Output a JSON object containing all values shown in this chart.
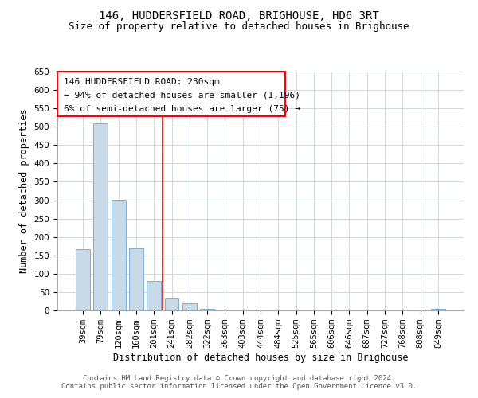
{
  "title": "146, HUDDERSFIELD ROAD, BRIGHOUSE, HD6 3RT",
  "subtitle": "Size of property relative to detached houses in Brighouse",
  "xlabel": "Distribution of detached houses by size in Brighouse",
  "ylabel": "Number of detached properties",
  "bar_labels": [
    "39sqm",
    "79sqm",
    "120sqm",
    "160sqm",
    "201sqm",
    "241sqm",
    "282sqm",
    "322sqm",
    "363sqm",
    "403sqm",
    "444sqm",
    "484sqm",
    "525sqm",
    "565sqm",
    "606sqm",
    "646sqm",
    "687sqm",
    "727sqm",
    "768sqm",
    "808sqm",
    "849sqm"
  ],
  "bar_values": [
    167,
    510,
    302,
    170,
    80,
    33,
    20,
    5,
    0,
    0,
    0,
    0,
    0,
    0,
    0,
    0,
    0,
    0,
    0,
    0,
    5
  ],
  "bar_color": "#c8d9e8",
  "bar_edgecolor": "#7bafd4",
  "ylim": [
    0,
    650
  ],
  "yticks": [
    0,
    50,
    100,
    150,
    200,
    250,
    300,
    350,
    400,
    450,
    500,
    550,
    600,
    650
  ],
  "vline_x": 4.5,
  "vline_color": "red",
  "annotation_line1": "146 HUDDERSFIELD ROAD: 230sqm",
  "annotation_line2": "← 94% of detached houses are smaller (1,196)",
  "annotation_line3": "6% of semi-detached houses are larger (75) →",
  "footer_text": "Contains HM Land Registry data © Crown copyright and database right 2024.\nContains public sector information licensed under the Open Government Licence v3.0.",
  "background_color": "#ffffff",
  "grid_color": "#d0d8e0",
  "title_fontsize": 10,
  "subtitle_fontsize": 9,
  "axis_label_fontsize": 8.5,
  "tick_fontsize": 7.5,
  "annotation_fontsize": 8,
  "footer_fontsize": 6.5
}
